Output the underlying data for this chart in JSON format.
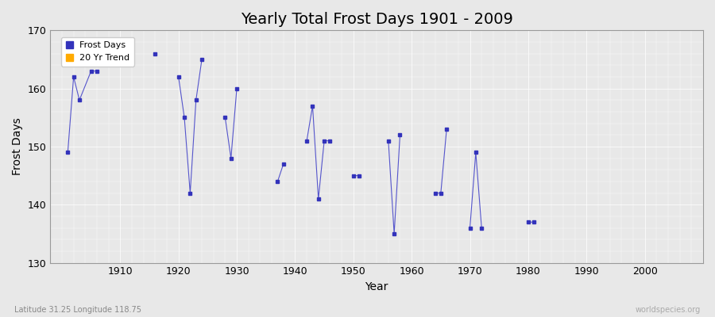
{
  "title": "Yearly Total Frost Days 1901 - 2009",
  "xlabel": "Year",
  "ylabel": "Frost Days",
  "xlim": [
    1898,
    2010
  ],
  "ylim": [
    130,
    170
  ],
  "yticks": [
    130,
    140,
    150,
    160,
    170
  ],
  "xticks": [
    1910,
    1920,
    1930,
    1940,
    1950,
    1960,
    1970,
    1980,
    1990,
    2000
  ],
  "years": [
    1901,
    1902,
    1903,
    1905,
    1906,
    null,
    1916,
    null,
    1920,
    1921,
    1922,
    1923,
    1924,
    null,
    1928,
    1929,
    1930,
    null,
    1937,
    1938,
    null,
    1942,
    1943,
    1944,
    1945,
    1946,
    null,
    1950,
    1951,
    null,
    1956,
    1957,
    1958,
    null,
    1964,
    1965,
    1966,
    null,
    1970,
    1971,
    1972,
    null,
    1980,
    1981
  ],
  "frost_days": [
    149,
    162,
    158,
    163,
    163,
    null,
    166,
    null,
    162,
    155,
    142,
    158,
    165,
    null,
    155,
    148,
    160,
    null,
    144,
    147,
    null,
    151,
    157,
    141,
    151,
    151,
    null,
    145,
    145,
    null,
    151,
    135,
    152,
    null,
    142,
    142,
    153,
    null,
    136,
    149,
    136,
    null,
    137,
    137
  ],
  "line_color": "#5555cc",
  "marker_color": "#3333bb",
  "marker_size": 2.5,
  "bg_color": "#e8e8e8",
  "grid_color": "#ffffff",
  "legend_frost_color": "#3333bb",
  "legend_trend_color": "#ffaa00",
  "subtitle": "Latitude 31.25 Longitude 118.75",
  "watermark": "worldspecies.org",
  "title_fontsize": 14
}
